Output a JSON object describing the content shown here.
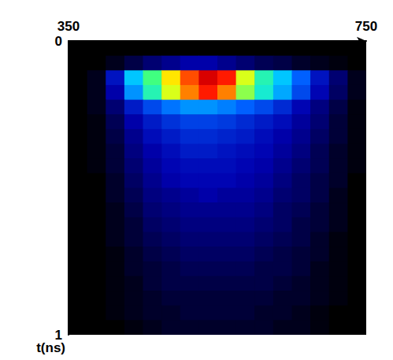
{
  "chart_data": {
    "type": "heatmap",
    "xlim": [
      350,
      750
    ],
    "xticks": [
      350,
      750
    ],
    "ylim": [
      0,
      1
    ],
    "yticks": [
      0,
      1
    ],
    "y_label": "t(ns)",
    "grid": false,
    "zlim": [
      0,
      1
    ],
    "x_bins": [
      350,
      375,
      400,
      425,
      450,
      475,
      500,
      525,
      550,
      575,
      600,
      625,
      650,
      675,
      700,
      725,
      750
    ],
    "y_bins": [
      0,
      0.05,
      0.1,
      0.15,
      0.2,
      0.25,
      0.3,
      0.35,
      0.4,
      0.45,
      0.5,
      0.55,
      0.6,
      0.65,
      0.7,
      0.75,
      0.8,
      0.85,
      0.9,
      0.95,
      1
    ],
    "intensity": [
      [
        0,
        0,
        0,
        0,
        0,
        0,
        0,
        0,
        0,
        0,
        0,
        0,
        0,
        0,
        0,
        0
      ],
      [
        0,
        0,
        0.02,
        0.05,
        0.08,
        0.1,
        0.12,
        0.12,
        0.1,
        0.08,
        0.06,
        0.05,
        0.03,
        0.02,
        0.01,
        0
      ],
      [
        0,
        0.02,
        0.15,
        0.35,
        0.5,
        0.65,
        0.8,
        0.95,
        0.85,
        0.6,
        0.45,
        0.35,
        0.25,
        0.15,
        0.08,
        0.02
      ],
      [
        0,
        0.02,
        0.12,
        0.3,
        0.45,
        0.6,
        0.75,
        0.85,
        0.75,
        0.55,
        0.42,
        0.32,
        0.22,
        0.13,
        0.07,
        0.02
      ],
      [
        0,
        0.02,
        0.08,
        0.16,
        0.22,
        0.27,
        0.3,
        0.3,
        0.28,
        0.25,
        0.22,
        0.18,
        0.13,
        0.09,
        0.05,
        0.01
      ],
      [
        0,
        0.01,
        0.06,
        0.12,
        0.16,
        0.19,
        0.21,
        0.21,
        0.2,
        0.18,
        0.16,
        0.14,
        0.11,
        0.08,
        0.04,
        0.01
      ],
      [
        0,
        0.01,
        0.05,
        0.1,
        0.14,
        0.16,
        0.18,
        0.18,
        0.17,
        0.16,
        0.14,
        0.12,
        0.1,
        0.07,
        0.04,
        0.01
      ],
      [
        0,
        0.01,
        0.04,
        0.09,
        0.12,
        0.14,
        0.16,
        0.16,
        0.15,
        0.14,
        0.13,
        0.11,
        0.09,
        0.06,
        0.03,
        0.01
      ],
      [
        0,
        0.01,
        0.04,
        0.08,
        0.11,
        0.13,
        0.14,
        0.14,
        0.14,
        0.13,
        0.12,
        0.1,
        0.08,
        0.06,
        0.03,
        0.01
      ],
      [
        0,
        0,
        0.03,
        0.07,
        0.1,
        0.12,
        0.13,
        0.13,
        0.13,
        0.12,
        0.11,
        0.09,
        0.07,
        0.05,
        0.03,
        0
      ],
      [
        0,
        0,
        0.03,
        0.06,
        0.09,
        0.1,
        0.11,
        0.12,
        0.11,
        0.11,
        0.1,
        0.08,
        0.07,
        0.05,
        0.02,
        0
      ],
      [
        0,
        0,
        0.02,
        0.05,
        0.08,
        0.09,
        0.1,
        0.1,
        0.1,
        0.1,
        0.09,
        0.07,
        0.06,
        0.04,
        0.02,
        0
      ],
      [
        0,
        0,
        0.02,
        0.04,
        0.07,
        0.08,
        0.09,
        0.09,
        0.09,
        0.09,
        0.08,
        0.07,
        0.05,
        0.04,
        0.02,
        0
      ],
      [
        0,
        0,
        0.02,
        0.04,
        0.06,
        0.07,
        0.08,
        0.08,
        0.08,
        0.08,
        0.07,
        0.06,
        0.05,
        0.03,
        0.01,
        0
      ],
      [
        0,
        0,
        0.01,
        0.03,
        0.05,
        0.06,
        0.07,
        0.07,
        0.07,
        0.07,
        0.06,
        0.05,
        0.04,
        0.03,
        0.01,
        0
      ],
      [
        0,
        0,
        0.01,
        0.03,
        0.04,
        0.05,
        0.06,
        0.06,
        0.06,
        0.06,
        0.05,
        0.05,
        0.04,
        0.02,
        0.01,
        0
      ],
      [
        0,
        0,
        0.01,
        0.02,
        0.04,
        0.05,
        0.05,
        0.05,
        0.05,
        0.05,
        0.05,
        0.04,
        0.03,
        0.02,
        0.01,
        0
      ],
      [
        0,
        0,
        0.01,
        0.02,
        0.03,
        0.04,
        0.04,
        0.04,
        0.04,
        0.04,
        0.04,
        0.03,
        0.03,
        0.02,
        0.01,
        0
      ],
      [
        0,
        0,
        0.01,
        0.02,
        0.03,
        0.03,
        0.04,
        0.04,
        0.04,
        0.04,
        0.03,
        0.03,
        0.02,
        0.01,
        0,
        0
      ],
      [
        0,
        0,
        0,
        0.01,
        0.02,
        0.03,
        0.03,
        0.03,
        0.03,
        0.03,
        0.03,
        0.02,
        0.02,
        0.01,
        0,
        0
      ]
    ]
  }
}
